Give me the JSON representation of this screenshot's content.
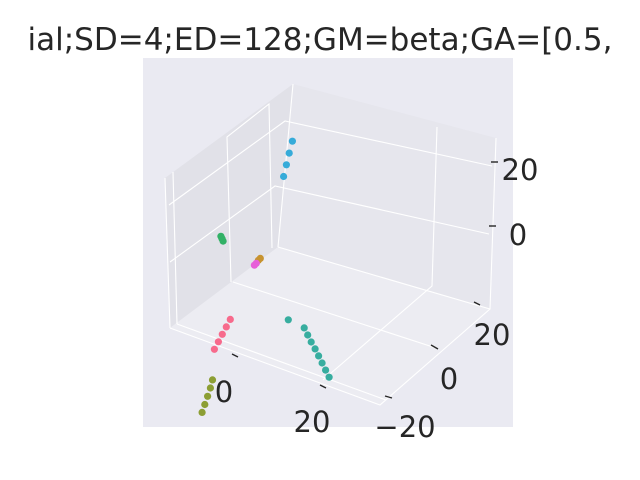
{
  "chart_data": {
    "type": "scatter",
    "title": "ial;SD=4;ED=128;GM=beta;GA=[0.5,",
    "xlabel": "",
    "ylabel": "",
    "zlabel": "",
    "projection": "3d",
    "grid": true,
    "legend": "none",
    "xticks": [
      "0",
      "20"
    ],
    "yticks": [
      "−20",
      "0",
      "20"
    ],
    "zticks": [
      "0",
      "20"
    ],
    "xlim": [
      -10,
      35
    ],
    "ylim": [
      -25,
      30
    ],
    "zlim": [
      -35,
      35
    ],
    "series": [
      {
        "color": "#36abd9",
        "x": [
          -7.9,
          -7.4,
          -7.0,
          -6.6
        ],
        "y": [
          5.2,
          5.6,
          6.0,
          6.4
        ],
        "z": [
          27,
          23.5,
          20,
          16.5
        ]
      },
      {
        "color": "#32b166",
        "x": [
          7.9,
          8.1,
          8.3
        ],
        "y": [
          8.1,
          8.2,
          8.3
        ],
        "z": [
          7.4,
          8.3,
          9.2
        ]
      },
      {
        "color": "#c7932f",
        "x": [
          2.4,
          2.8
        ],
        "y": [
          3.0,
          3.1
        ],
        "z": [
          -1.0,
          -1.3
        ]
      },
      {
        "color": "#e75fd9",
        "x": [
          3.2,
          3.6
        ],
        "y": [
          3.3,
          3.4
        ],
        "z": [
          -2.0,
          -2.3
        ]
      },
      {
        "color": "#f76a8c",
        "x": [
          14.5,
          15.8,
          17.1,
          18.4,
          19.7
        ],
        "y": [
          -2.0,
          -2.3,
          -2.6,
          -2.9,
          -3.2
        ],
        "z": [
          -8.8,
          -10.0,
          -11.2,
          -12.4,
          -13.6
        ]
      },
      {
        "color": "#8c9e34",
        "x": [
          27.6,
          29.5,
          31.5,
          33.5,
          35.4
        ],
        "y": [
          -12.0,
          -13.6,
          -15.1,
          -16.6,
          -18.0
        ],
        "z": [
          -14.0,
          -14.5,
          -15.0,
          -15.5,
          -16.0
        ]
      },
      {
        "color": "#37ad9f",
        "x": [
          -2.0,
          -2.5,
          -3.0,
          -3.6,
          -4.1,
          -4.6,
          -5.1,
          -5.6,
          0.5
        ],
        "y": [
          -5.5,
          -6.0,
          -6.5,
          -7.0,
          -7.5,
          -8.0,
          -8.5,
          -9.0,
          -3.5
        ],
        "z": [
          -24,
          -26.5,
          -29,
          -31.5,
          -34,
          -36.5,
          -39,
          -41.5,
          -20
        ]
      }
    ]
  }
}
